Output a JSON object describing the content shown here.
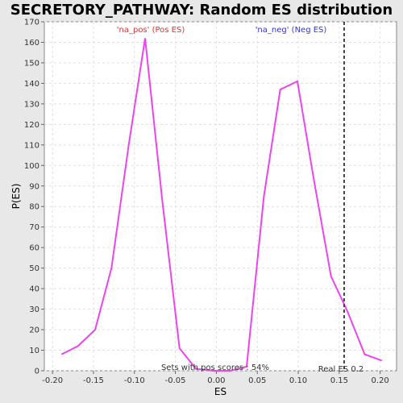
{
  "chart_data": {
    "type": "line",
    "title": "SECRETORY_PATHWAY: Random ES distribution",
    "xlabel": "ES",
    "ylabel": "P(ES)",
    "xlim": [
      -0.21,
      0.22
    ],
    "ylim": [
      0,
      170
    ],
    "xticks": [
      -0.2,
      -0.15,
      -0.1,
      -0.05,
      0.0,
      0.05,
      0.1,
      0.15,
      0.2
    ],
    "xtick_labels": [
      "-0.20",
      "-0.15",
      "-0.10",
      "-0.05",
      "0.00",
      "0.05",
      "0.10",
      "0.15",
      "0.20"
    ],
    "yticks": [
      0,
      10,
      20,
      30,
      40,
      50,
      60,
      70,
      80,
      90,
      100,
      110,
      120,
      130,
      140,
      150,
      160,
      170
    ],
    "grid": true,
    "series": [
      {
        "color": "#ee44ee",
        "x": [
          -0.189,
          -0.169,
          -0.148,
          -0.128,
          -0.107,
          -0.087,
          -0.066,
          -0.045,
          -0.025,
          -0.004,
          0.017,
          0.037,
          0.058,
          0.078,
          0.099,
          0.119,
          0.14,
          0.16,
          0.181,
          0.202
        ],
        "y": [
          8,
          12,
          20,
          50,
          110,
          162,
          83,
          11,
          1,
          0,
          0,
          2,
          85,
          137,
          141,
          93,
          46,
          29,
          8,
          5
        ]
      }
    ],
    "real_es": 0.156,
    "annotations": {
      "pos_label": "'na_pos' (Pos ES)",
      "neg_label": "'na_neg' (Neg ES)",
      "pos_scores": "Sets with pos scores : 54%",
      "real_es_label": "Real ES 0.2"
    },
    "colors": {
      "pos": "#dd3333",
      "neg": "#3333dd",
      "line": "#ee44ee"
    }
  }
}
